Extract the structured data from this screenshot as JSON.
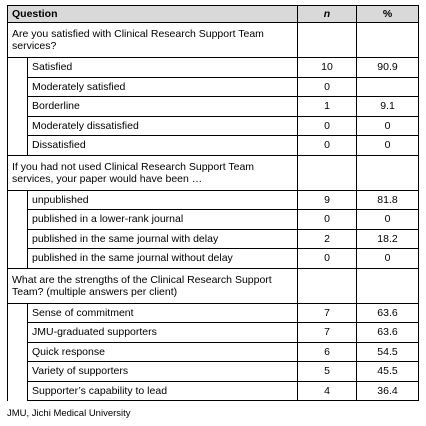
{
  "table": {
    "header": [
      "Question",
      "n",
      "%"
    ],
    "sections": [
      {
        "question": "Are you satisfied with Clinical Research Support Team services?",
        "items": [
          {
            "label": "Satisfied",
            "n": "10",
            "pct": "90.9"
          },
          {
            "label": "Moderately satisfied",
            "n": "0"
          },
          {
            "label": "Borderline",
            "n": "1",
            "pct": "9.1"
          },
          {
            "label": "Moderately dissatisfied",
            "n": "0",
            "pct": "0"
          },
          {
            "label": "Dissatisfied",
            "n": "0",
            "pct": "0"
          }
        ]
      },
      {
        "question": "If you had not used Clinical Research Support Team services, your paper would have been …",
        "items": [
          {
            "label": "unpublished",
            "n": "9",
            "pct": "81.8"
          },
          {
            "label": "published in a lower-rank journal",
            "n": "0",
            "pct": "0"
          },
          {
            "label": "published in the same journal with delay",
            "n": "2",
            "pct": "18.2"
          },
          {
            "label": "published in the same journal without delay",
            "n": "0",
            "pct": "0"
          }
        ]
      },
      {
        "question": "What are the strengths of the Clinical Research Support Team? (multiple answers per client)",
        "items": [
          {
            "label": "Sense of commitment",
            "n": "7",
            "pct": "63.6"
          },
          {
            "label": "JMU-graduated supporters",
            "n": "7",
            "pct": "63.6"
          },
          {
            "label": "Quick response",
            "n": "6",
            "pct": "54.5"
          },
          {
            "label": "Variety of supporters",
            "n": "5",
            "pct": "45.5"
          },
          {
            "label": "Supporter’s capability to lead",
            "n": "4",
            "pct": "36.4"
          }
        ]
      }
    ]
  },
  "footnote": "JMU, Jichi Medical University"
}
